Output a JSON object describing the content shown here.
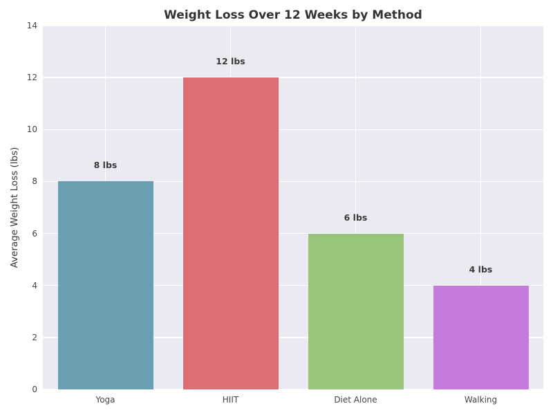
{
  "figure": {
    "background": "#ffffff"
  },
  "chart_data": {
    "type": "bar",
    "title": "Weight Loss Over 12 Weeks by Method",
    "xlabel": "",
    "ylabel": "Average Weight Loss (lbs)",
    "categories": [
      "Yoga",
      "HIIT",
      "Diet Alone",
      "Walking"
    ],
    "values": [
      8,
      12,
      6,
      4
    ],
    "bar_labels": [
      "8 lbs",
      "12 lbs",
      "6 lbs",
      "4 lbs"
    ],
    "bar_colors": [
      "#6a9fb2",
      "#dd6c73",
      "#97c57c",
      "#c57adc"
    ],
    "ylim": [
      0,
      14
    ],
    "yticks": [
      0,
      2,
      4,
      6,
      8,
      10,
      12,
      14
    ],
    "grid": true,
    "legend": false,
    "plot_background": "#eaeaf2",
    "gridline_color": "#ffffff",
    "title_color": "#333333",
    "tick_color": "#444444",
    "value_label_color": "#3a3a3a"
  }
}
